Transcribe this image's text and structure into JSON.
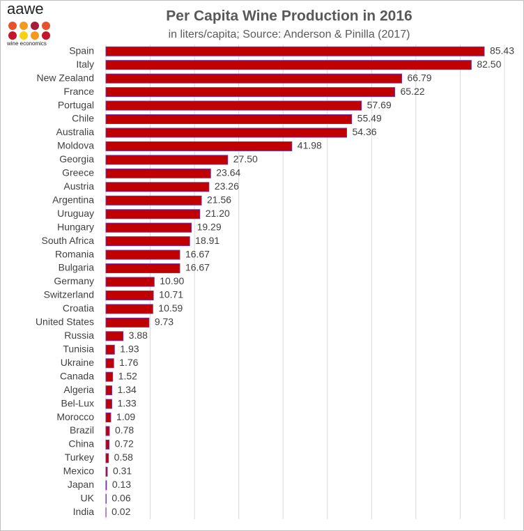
{
  "logo": {
    "text": "aawe",
    "caption": "wine economics"
  },
  "chart_data": {
    "type": "bar",
    "orientation": "horizontal",
    "title": "Per Capita Wine Production in 2016",
    "subtitle": "in liters/capita; Source: Anderson & Pinilla (2017)",
    "categories": [
      "Spain",
      "Italy",
      "New Zealand",
      "France",
      "Portugal",
      "Chile",
      "Australia",
      "Moldova",
      "Georgia",
      "Greece",
      "Austria",
      "Argentina",
      "Uruguay",
      "Hungary",
      "South Africa",
      "Romania",
      "Bulgaria",
      "Germany",
      "Switzerland",
      "Croatia",
      "United States",
      "Russia",
      "Tunisia",
      "Ukraine",
      "Canada",
      "Algeria",
      "Bel-Lux",
      "Morocco",
      "Brazil",
      "China",
      "Turkey",
      "Mexico",
      "Japan",
      "UK",
      "India"
    ],
    "values": [
      85.43,
      82.5,
      66.79,
      65.22,
      57.69,
      55.49,
      54.36,
      41.98,
      27.5,
      23.64,
      23.26,
      21.56,
      21.2,
      19.29,
      18.91,
      16.67,
      16.67,
      10.9,
      10.71,
      10.59,
      9.73,
      3.88,
      1.93,
      1.76,
      1.52,
      1.34,
      1.33,
      1.09,
      0.78,
      0.72,
      0.58,
      0.31,
      0.13,
      0.06,
      0.02
    ],
    "value_labels": [
      "85.43",
      "82.50",
      "66.79",
      "65.22",
      "57.69",
      "55.49",
      "54.36",
      "41.98",
      "27.50",
      "23.64",
      "23.26",
      "21.56",
      "21.20",
      "19.29",
      "18.91",
      "16.67",
      "16.67",
      "10.90",
      "10.71",
      "10.59",
      "9.73",
      "3.88",
      "1.93",
      "1.76",
      "1.52",
      "1.34",
      "1.33",
      "1.09",
      "0.78",
      "0.72",
      "0.58",
      "0.31",
      "0.13",
      "0.06",
      "0.02"
    ],
    "color": "#c00000",
    "edge_color": "#7030a0",
    "xlim": [
      0,
      90
    ],
    "xticks": [
      0,
      10,
      20,
      30,
      40,
      50,
      60,
      70,
      80,
      90
    ],
    "grid": true
  }
}
